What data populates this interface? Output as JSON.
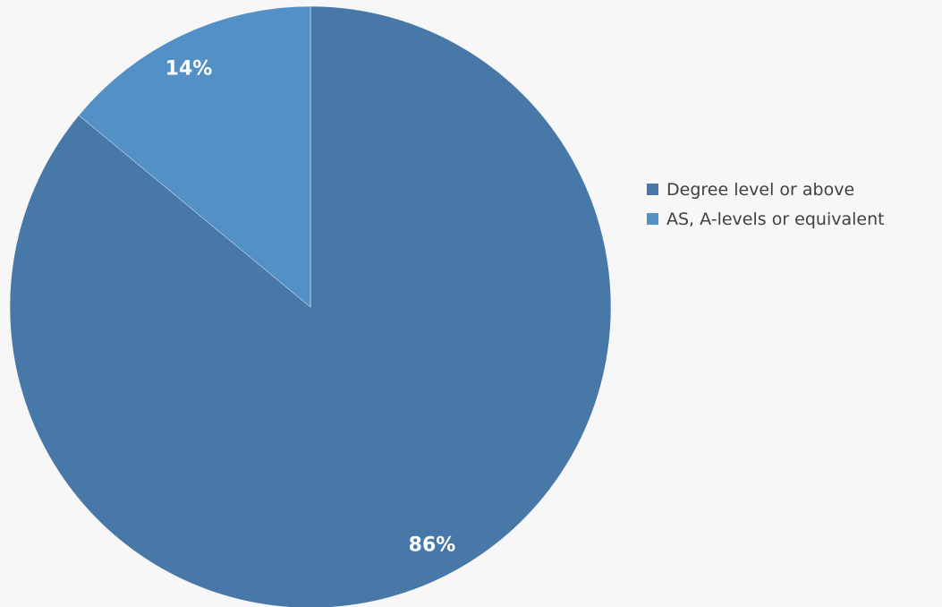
{
  "chart_data": {
    "type": "pie",
    "start_angle": "12 o'clock",
    "direction": "clockwise",
    "slices": [
      {
        "label": "Degree level or above",
        "value": 86,
        "value_label": "86%",
        "color": "#4778a8"
      },
      {
        "label": "AS, A-levels or equivalent",
        "value": 14,
        "value_label": "14%",
        "color": "#5390c6"
      }
    ],
    "legend": {
      "placement": "right",
      "entries": [
        "Degree level or above",
        "AS, A-levels or equivalent"
      ]
    }
  }
}
